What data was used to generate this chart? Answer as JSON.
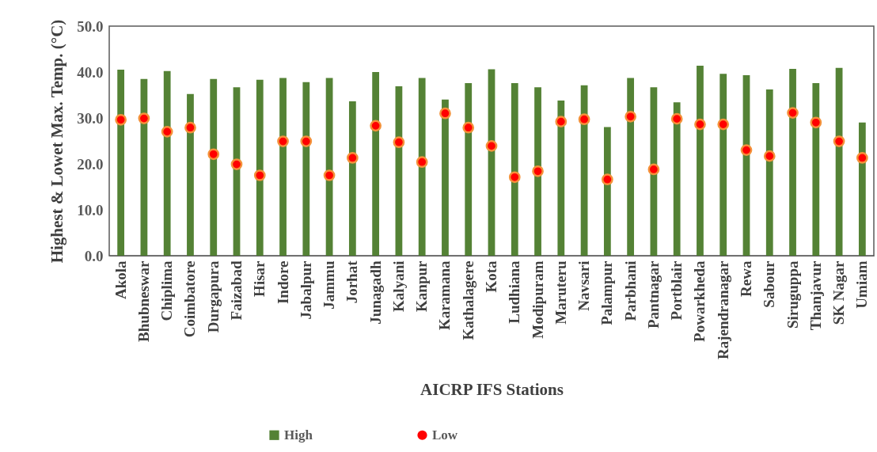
{
  "chart_data": {
    "type": "bar",
    "xlabel": "AICRP IFS Stations",
    "ylabel": "Highest & Lowet Max. Temp. (°C)",
    "categories": [
      "Akola",
      "Bhubneswar",
      "Chiplima",
      "Coimbatore",
      "Durgapura",
      "Faizabad",
      "Hisar",
      "Indore",
      "Jabalpur",
      "Jammu",
      "Jorhat",
      "Junagadh",
      "Kalyani",
      "Kanpur",
      "Karamana",
      "Kathalagere",
      "Kota",
      "Ludhiana",
      "Modipuram",
      "Maruteru",
      "Navsari",
      "Palampur",
      "Parbhani",
      "Pantnagar",
      "Portblair",
      "Powarkheda",
      "Rajendranagar",
      "Rewa",
      "Sabour",
      "Siruguppa",
      "Thanjavur",
      "SK Nagar",
      "Umiam"
    ],
    "series": [
      {
        "name": "High",
        "color": "#548235",
        "values": [
          40.5,
          38.5,
          40.2,
          35.2,
          38.5,
          36.7,
          38.3,
          38.7,
          37.8,
          38.7,
          33.6,
          40.0,
          36.9,
          38.7,
          34.0,
          37.6,
          40.6,
          37.6,
          36.7,
          33.8,
          37.1,
          28.0,
          38.7,
          36.7,
          33.4,
          41.4,
          39.6,
          39.3,
          36.2,
          40.7,
          37.6,
          40.9,
          29.0
        ]
      },
      {
        "name": "Low",
        "type": "scatter",
        "color": "#ff0000",
        "values": [
          29.6,
          29.9,
          27.0,
          27.9,
          22.1,
          19.9,
          17.5,
          24.9,
          24.9,
          17.5,
          21.3,
          28.3,
          24.7,
          20.4,
          31.0,
          27.9,
          23.9,
          17.1,
          18.4,
          29.2,
          29.7,
          16.6,
          30.3,
          18.8,
          29.8,
          28.6,
          28.6,
          23.0,
          21.7,
          31.1,
          29.0,
          24.9,
          21.3
        ]
      }
    ],
    "ylim": [
      0,
      50
    ],
    "yticks": [
      {
        "value": 0,
        "label": "0.0"
      },
      {
        "value": 10,
        "label": "10.0"
      },
      {
        "value": 20,
        "label": "20.0"
      },
      {
        "value": 30,
        "label": "30.0"
      },
      {
        "value": 40,
        "label": "40.0"
      },
      {
        "value": 50,
        "label": "50.0"
      }
    ],
    "grid": false,
    "legend": "bottom",
    "marker": "circle"
  }
}
